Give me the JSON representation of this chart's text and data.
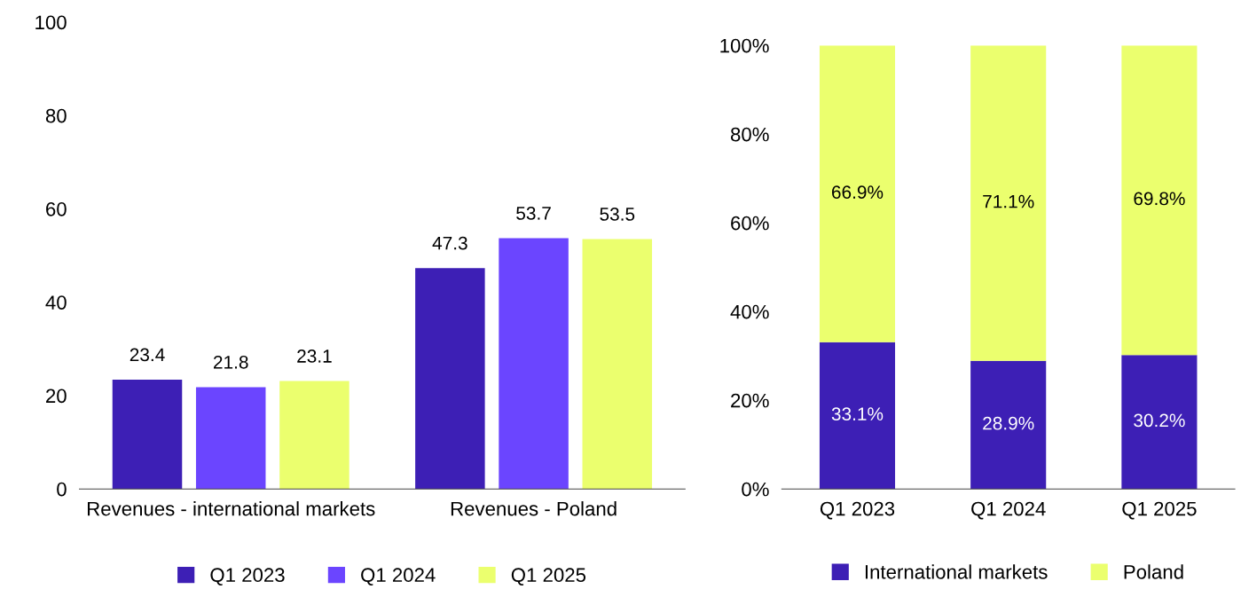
{
  "chart_data": [
    {
      "type": "bar",
      "categories": [
        "Revenues - international markets",
        "Revenues - Poland"
      ],
      "series": [
        {
          "name": "Q1 2023",
          "color": "#3d1fb5",
          "values": [
            23.4,
            47.3
          ]
        },
        {
          "name": "Q1 2024",
          "color": "#6b45ff",
          "values": [
            21.8,
            53.7
          ]
        },
        {
          "name": "Q1 2025",
          "color": "#ebff6e",
          "values": [
            23.1,
            53.5
          ]
        }
      ],
      "ylim": [
        0,
        100
      ],
      "yticks": [
        0,
        20,
        40,
        60,
        80,
        100
      ],
      "grid": false,
      "legend": "bottom",
      "data_labels": true
    },
    {
      "type": "bar",
      "stacked": true,
      "categories": [
        "Q1 2023",
        "Q1 2024",
        "Q1 2025"
      ],
      "series": [
        {
          "name": "International markets",
          "color": "#3d1fb5",
          "values": [
            33.1,
            28.9,
            30.2
          ],
          "value_labels": [
            "33.1%",
            "28.9%",
            "30.2%"
          ]
        },
        {
          "name": "Poland",
          "color": "#ebff6e",
          "values": [
            66.9,
            71.1,
            69.8
          ],
          "value_labels": [
            "66.9%",
            "71.1%",
            "69.8%"
          ]
        }
      ],
      "ylim": [
        0,
        100
      ],
      "yticks": [
        {
          "value": 0,
          "label": "0%"
        },
        {
          "value": 20,
          "label": "20%"
        },
        {
          "value": 40,
          "label": "40%"
        },
        {
          "value": 60,
          "label": "60%"
        },
        {
          "value": 80,
          "label": "80%"
        },
        {
          "value": 100,
          "label": "100%"
        }
      ],
      "grid": false,
      "legend": "bottom"
    }
  ]
}
